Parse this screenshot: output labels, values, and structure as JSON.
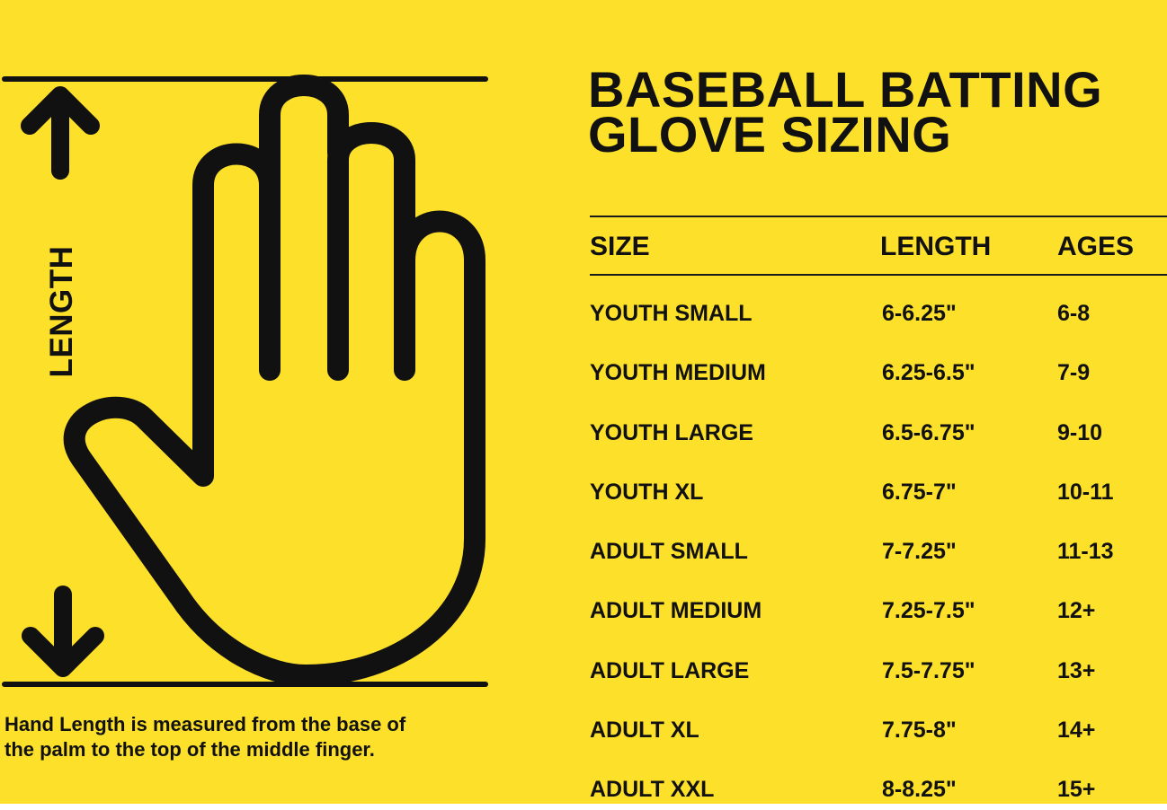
{
  "colors": {
    "background": "#fde02a",
    "ink": "#111111"
  },
  "illustration": {
    "hand_icon": "open-hand-outline-icon",
    "arrow_up_icon": "arrow-up-icon",
    "arrow_down_icon": "arrow-down-icon",
    "length_label": "LENGTH"
  },
  "caption": "Hand Length is measured from the base of\nthe palm  to the top of the middle finger.",
  "title": {
    "line1": "BASEBALL BATTING",
    "line2": "GLOVE SIZING"
  },
  "table": {
    "headers": {
      "size": "SIZE",
      "length": "LENGTH",
      "ages": "AGES"
    },
    "rows": [
      {
        "size": "YOUTH SMALL",
        "length": "6-6.25\"",
        "ages": "6-8"
      },
      {
        "size": "YOUTH MEDIUM",
        "length": "6.25-6.5\"",
        "ages": "7-9"
      },
      {
        "size": "YOUTH LARGE",
        "length": "6.5-6.75\"",
        "ages": "9-10"
      },
      {
        "size": "YOUTH XL",
        "length": "6.75-7\"",
        "ages": "10-11"
      },
      {
        "size": "ADULT SMALL",
        "length": "7-7.25\"",
        "ages": "11-13"
      },
      {
        "size": "ADULT MEDIUM",
        "length": "7.25-7.5\"",
        "ages": "12+"
      },
      {
        "size": "ADULT LARGE",
        "length": "7.5-7.75\"",
        "ages": "13+"
      },
      {
        "size": "ADULT XL",
        "length": "7.75-8\"",
        "ages": "14+"
      },
      {
        "size": "ADULT XXL",
        "length": "8-8.25\"",
        "ages": "15+"
      }
    ]
  }
}
